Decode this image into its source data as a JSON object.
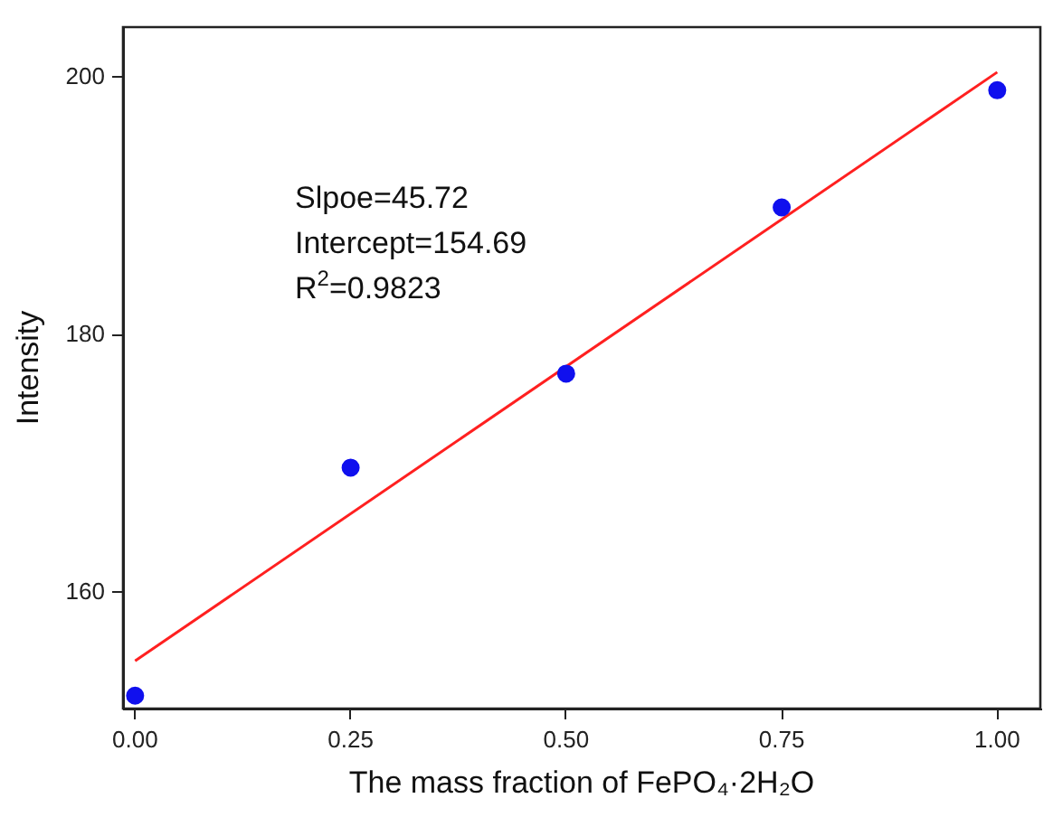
{
  "chart_data": {
    "type": "scatter",
    "xlabel": "The mass fraction of FePO₄·2H₂O",
    "ylabel": "Intensity",
    "xlim": [
      -0.014,
      1.05
    ],
    "ylim": [
      151,
      203.9
    ],
    "xticks": [
      {
        "value": 0,
        "label": "0.00"
      },
      {
        "value": 0.25,
        "label": "0.25"
      },
      {
        "value": 0.5,
        "label": "0.50"
      },
      {
        "value": 0.75,
        "label": "0.75"
      },
      {
        "value": 1,
        "label": "1.00"
      }
    ],
    "yticks": [
      160,
      180,
      200
    ],
    "grid": false,
    "legend": false,
    "marker": "circle",
    "annotations": [
      "Slpoe=45.72",
      "Intercept=154.69",
      "R$^{2}$=0.9823"
    ],
    "series": [
      {
        "color": "#1010ee",
        "x": [
          0,
          0.25,
          0.5,
          0.75,
          1
        ],
        "values": [
          152.0,
          169.7,
          177.0,
          189.9,
          199.0
        ]
      },
      {
        "type": "line",
        "color": "#ff2020",
        "marker": "none",
        "x": [
          0,
          1
        ],
        "values": [
          154.7,
          200.4
        ]
      }
    ]
  }
}
